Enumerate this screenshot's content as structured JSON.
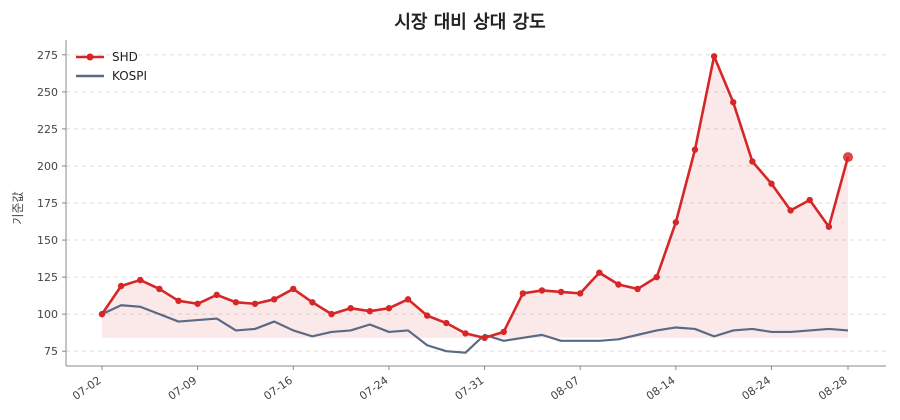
{
  "chart_data": {
    "type": "line",
    "title": "시장 대비 상대 강도",
    "xlabel": "",
    "ylabel": "기준값",
    "ylim": [
      65,
      285
    ],
    "yticks": [
      75,
      100,
      125,
      150,
      175,
      200,
      225,
      250,
      275
    ],
    "xtick_labels": [
      "07-02",
      "07-09",
      "07-16",
      "07-24",
      "07-31",
      "08-07",
      "08-14",
      "08-24",
      "08-28"
    ],
    "xtick_index": [
      0,
      5,
      10,
      15,
      20,
      25,
      30,
      35,
      39
    ],
    "legend_position": "top-left",
    "grid": true,
    "baseline": 84,
    "series": [
      {
        "name": "SHD",
        "color": "#d62728",
        "values": [
          100,
          119,
          123,
          117,
          109,
          107,
          113,
          108,
          107,
          110,
          117,
          108,
          100,
          104,
          102,
          104,
          110,
          99,
          94,
          87,
          84,
          88,
          114,
          116,
          115,
          114,
          128,
          120,
          117,
          125,
          162,
          211,
          274,
          243,
          203,
          188,
          170,
          177,
          159,
          206
        ]
      },
      {
        "name": "KOSPI",
        "color": "#5a6a85",
        "values": [
          100,
          106,
          105,
          100,
          95,
          96,
          97,
          89,
          90,
          95,
          89,
          85,
          88,
          89,
          93,
          88,
          89,
          79,
          75,
          74,
          86,
          82,
          84,
          86,
          82,
          82,
          82,
          83,
          86,
          89,
          91,
          90,
          85,
          89,
          90,
          88,
          88,
          89,
          90,
          89
        ]
      }
    ]
  }
}
